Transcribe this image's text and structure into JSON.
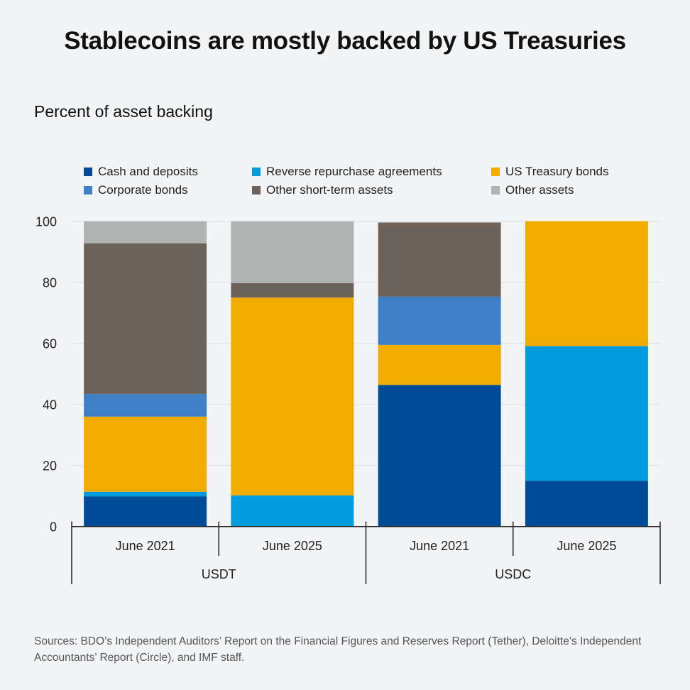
{
  "chart_data": {
    "type": "bar",
    "stacked": true,
    "title": "Stablecoins are mostly backed by US Treasuries",
    "ylabel": "Percent of asset backing",
    "ylim": [
      0,
      100
    ],
    "yticks": [
      0,
      20,
      40,
      60,
      80,
      100
    ],
    "grid": true,
    "legend_position": "top",
    "categories": [
      "June 2021",
      "June 2025",
      "June 2021",
      "June 2025"
    ],
    "groups": [
      {
        "label": "USDT",
        "categories": [
          0,
          1
        ]
      },
      {
        "label": "USDC",
        "categories": [
          2,
          3
        ]
      }
    ],
    "series": [
      {
        "name": "Cash and deposits",
        "color": "#004c97",
        "values": [
          9.9,
          0,
          46.4,
          15.0
        ]
      },
      {
        "name": "Reverse repurchase agreements",
        "color": "#009cde",
        "values": [
          1.5,
          10.2,
          0,
          44.1
        ]
      },
      {
        "name": "US Treasury bonds",
        "color": "#f2ab00",
        "values": [
          24.6,
          64.8,
          13.1,
          40.9
        ]
      },
      {
        "name": "Corporate bonds",
        "color": "#3f7fc8",
        "values": [
          7.4,
          0,
          15.8,
          0
        ]
      },
      {
        "name": "Other short-term assets",
        "color": "#6e635a",
        "values": [
          49.4,
          4.7,
          24.3,
          0
        ]
      },
      {
        "name": "Other assets",
        "color": "#b1b2b2",
        "values": [
          7.2,
          20.3,
          0,
          0
        ]
      }
    ]
  },
  "sources": "Sources: BDO’s Independent Auditors’ Report on the Financial Figures and Reserves Report (Tether), Deloitte’s Independent Accountants’ Report (Circle), and IMF staff."
}
